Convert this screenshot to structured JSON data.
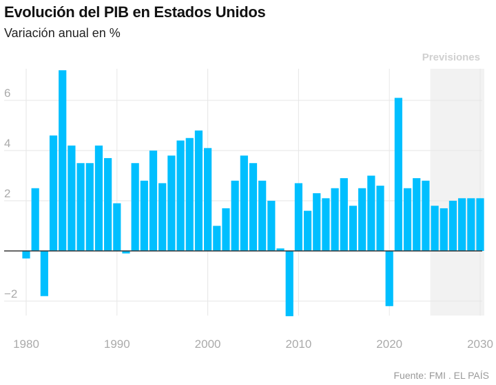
{
  "title": "Evolución del PIB en Estados Unidos",
  "subtitle": "Variación anual en %",
  "source": "Fuente: FMI . EL PAÍS",
  "colors": {
    "bar": "#00bfff",
    "forecast_shade": "#f2f2f2",
    "zero_line": "#333333",
    "grid": "#e6e6e6"
  },
  "chart_data": {
    "type": "bar",
    "title": "Evolución del PIB en Estados Unidos",
    "subtitle": "Variación anual en %",
    "xlabel": "",
    "ylabel": "",
    "x": [
      1980,
      1981,
      1982,
      1983,
      1984,
      1985,
      1986,
      1987,
      1988,
      1989,
      1990,
      1991,
      1992,
      1993,
      1994,
      1995,
      1996,
      1997,
      1998,
      1999,
      2000,
      2001,
      2002,
      2003,
      2004,
      2005,
      2006,
      2007,
      2008,
      2009,
      2010,
      2011,
      2012,
      2013,
      2014,
      2015,
      2016,
      2017,
      2018,
      2019,
      2020,
      2021,
      2022,
      2023,
      2024,
      2025,
      2026,
      2027,
      2028,
      2029,
      2030
    ],
    "values": [
      -0.3,
      2.5,
      -1.8,
      4.6,
      7.2,
      4.2,
      3.5,
      3.5,
      4.2,
      3.7,
      1.9,
      -0.1,
      3.5,
      2.8,
      4.0,
      2.7,
      3.8,
      4.4,
      4.5,
      4.8,
      4.1,
      1.0,
      1.7,
      2.8,
      3.8,
      3.5,
      2.8,
      2.0,
      0.1,
      -2.6,
      2.7,
      1.6,
      2.3,
      2.1,
      2.5,
      2.9,
      1.8,
      2.5,
      3.0,
      2.6,
      -2.2,
      6.1,
      2.5,
      2.9,
      2.8,
      1.8,
      1.7,
      2.0,
      2.1,
      2.1,
      2.1
    ],
    "xlim": [
      1980,
      2030
    ],
    "ylim": [
      -2.6,
      7.2
    ],
    "xticks": [
      "1980",
      "1990",
      "2000",
      "2010",
      "2020",
      "2030"
    ],
    "yticks": [
      "−2",
      "2",
      "4",
      "6"
    ],
    "ytick_values": [
      -2,
      2,
      4,
      6
    ],
    "xtick_values": [
      1980,
      1990,
      2000,
      2010,
      2020,
      2030
    ],
    "grid": true,
    "forecast": {
      "label": "Previsiones",
      "from": 2025,
      "to": 2030
    }
  }
}
